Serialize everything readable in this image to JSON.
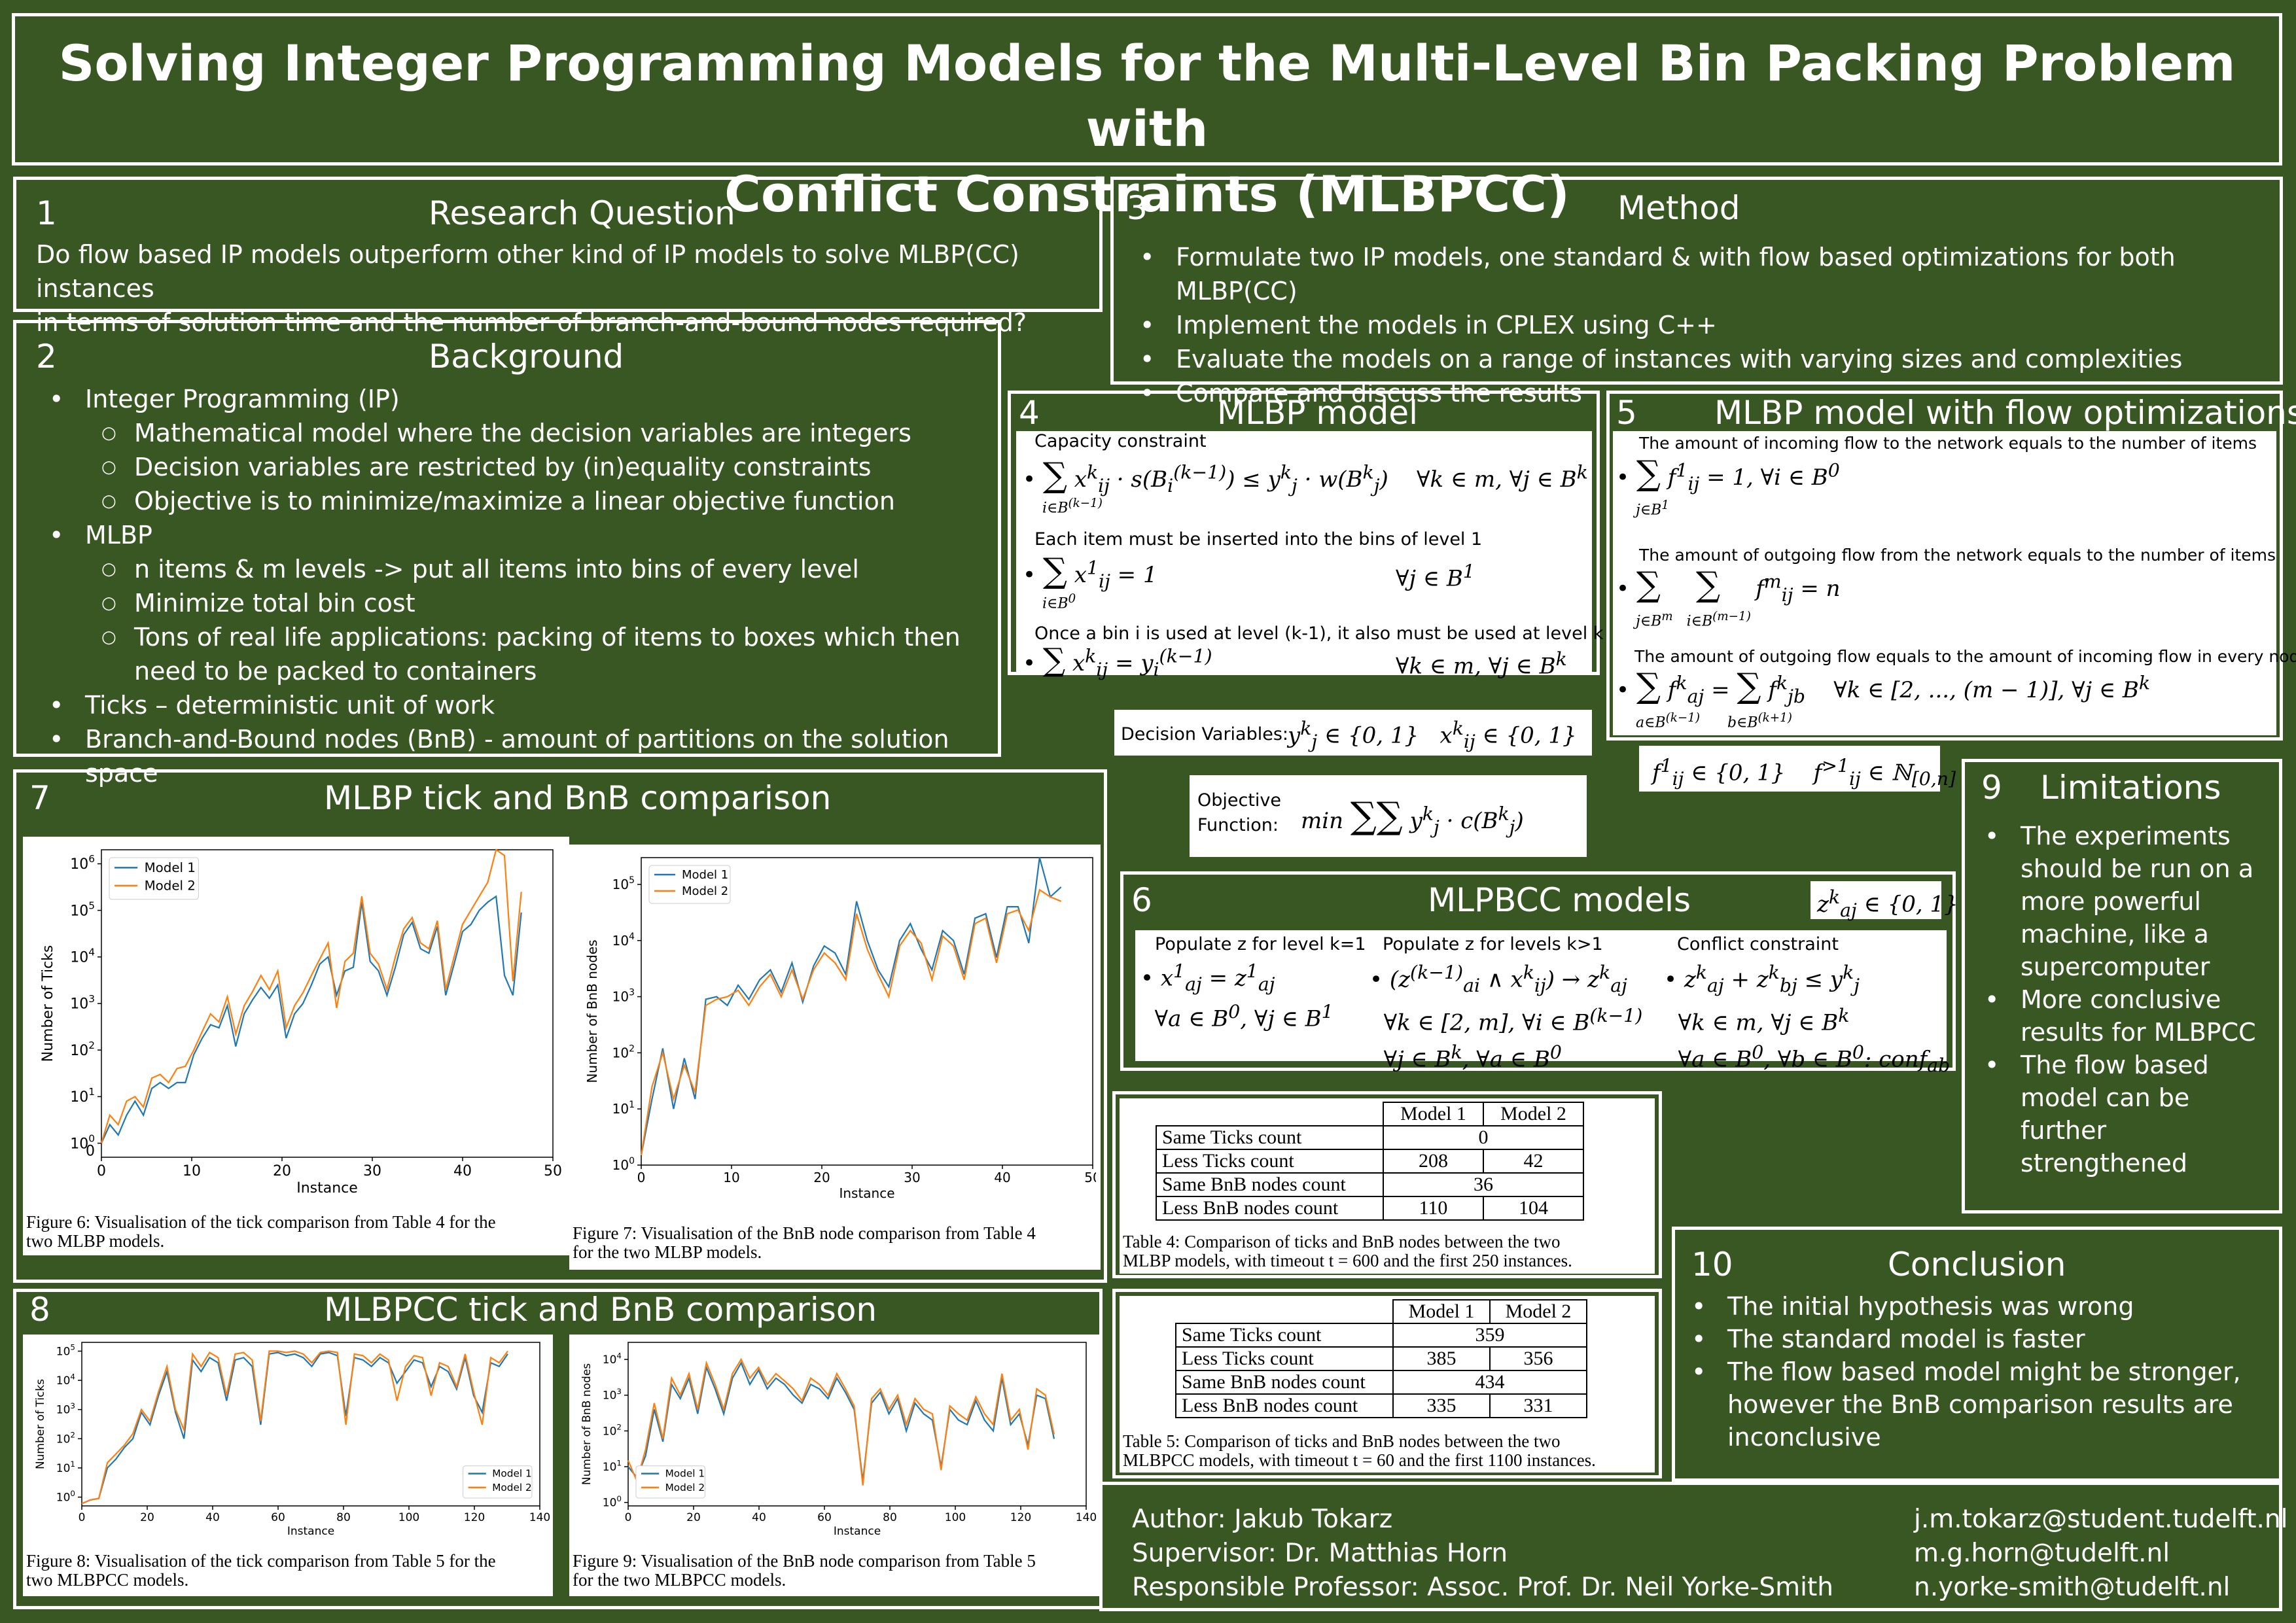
{
  "title": {
    "line1": "Solving Integer Programming Models for the Multi-Level Bin Packing Problem with",
    "line2": "Conflict Constraints (MLBPCC)"
  },
  "research_question": {
    "number": "1",
    "heading": "Research Question",
    "line1": "Do flow based IP models outperform other kind of IP models to solve MLBP(CC) instances",
    "line2": "in terms of solution time and the number of branch-and-bound nodes required?"
  },
  "background": {
    "number": "2",
    "heading": "Background",
    "ip": "Integer Programming (IP)",
    "ip_sub": [
      "Mathematical model where the decision variables are integers",
      "Decision variables are restricted by (in)equality constraints",
      "Objective is to minimize/maximize a linear objective function"
    ],
    "mlbp": "MLBP",
    "mlbp_sub": [
      "n items & m levels -> put all items into bins of every level",
      "Minimize total bin cost",
      "Tons of real life applications: packing of items to boxes which then",
      "need to be packed to containers"
    ],
    "ticks": "Ticks – deterministic unit of work",
    "bnb": "Branch-and-Bound nodes (BnB) - amount of partitions on the solution space"
  },
  "method": {
    "number": "3",
    "heading": "Method",
    "items": [
      "Formulate two IP models, one standard & with flow based optimizations for both MLBP(CC)",
      "Implement the models in CPLEX using C++",
      "Evaluate the models on a range of instances with varying sizes and complexities",
      "Compare and discuss the results"
    ]
  },
  "mlbp_model": {
    "number": "4",
    "heading": "MLBP model",
    "capacity": "Capacity constraint",
    "each_item": "Each item must be inserted into the bins of level 1",
    "once_bin": "Once a bin i is used at level (k-1), it also must be used at level k",
    "decision_label": "Decision Variables:"
  },
  "flow_model": {
    "number": "5",
    "heading": "MLBP model with flow optimizations",
    "incoming": "The amount of incoming flow to the network equals to the number of items",
    "outgoing": "The amount of outgoing flow from the network equals to the number of items",
    "balance": "The amount of outgoing flow equals to the amount of incoming flow in every node"
  },
  "objective": {
    "label1": "Objective",
    "label2": "Function:"
  },
  "mlpbcc": {
    "number": "6",
    "heading": "MLPBCC models",
    "col1": "Populate z for level k=1",
    "col2": "Populate z for levels k>1",
    "col3": "Conflict constraint"
  },
  "mlbp_compare": {
    "number": "7",
    "heading": "MLBP tick and BnB comparison",
    "fig6_caption_1": "Figure 6:  Visualisation of the tick comparison from Table 4 for the",
    "fig6_caption_2": "two MLBP models.",
    "fig7_caption_1": "Figure 7:  Visualisation of the BnB node comparison from Table 4",
    "fig7_caption_2": "for the two MLBP models."
  },
  "mlbpcc_compare": {
    "number": "8",
    "heading": "MLBPCC tick and BnB comparison",
    "fig8_caption_1": "Figure 8:  Visualisation of the tick comparison from Table 5 for the",
    "fig8_caption_2": "two MLBPCC models.",
    "fig9_caption_1": "Figure 9:  Visualisation of the BnB node comparison from Table 5",
    "fig9_caption_2": "for the two MLBPCC models."
  },
  "table4": {
    "headers": [
      "Model 1",
      "Model 2"
    ],
    "rows": [
      {
        "label": "Same Ticks count",
        "span": "0"
      },
      {
        "label": "Less Ticks count",
        "m1": "208",
        "m2": "42"
      },
      {
        "label": "Same BnB nodes count",
        "span": "36"
      },
      {
        "label": "Less BnB nodes count",
        "m1": "110",
        "m2": "104"
      }
    ],
    "caption_1": "Table 4: Comparison of ticks and BnB nodes between the two",
    "caption_2": "MLBP models, with timeout t = 600 and the first 250 instances."
  },
  "table5": {
    "headers": [
      "Model 1",
      "Model 2"
    ],
    "rows": [
      {
        "label": "Same Ticks count",
        "span": "359"
      },
      {
        "label": "Less Ticks count",
        "m1": "385",
        "m2": "356"
      },
      {
        "label": "Same BnB nodes count",
        "span": "434"
      },
      {
        "label": "Less BnB nodes count",
        "m1": "335",
        "m2": "331"
      }
    ],
    "caption_1": "Table 5: Comparison of ticks and BnB nodes between the two",
    "caption_2": "MLBPCC models, with timeout t = 60 and the first 1100 instances."
  },
  "limitations": {
    "number": "9",
    "heading": "Limitations",
    "lines": [
      [
        "The experiments",
        "should be run on a",
        "more powerful",
        "machine, like a",
        "supercomputer"
      ],
      [
        "More conclusive",
        "results for MLBPCC"
      ],
      [
        "The flow based",
        "model can be",
        "further",
        "strengthened"
      ]
    ]
  },
  "conclusion": {
    "number": "10",
    "heading": "Conclusion",
    "items": [
      "The initial hypothesis was wrong",
      "The standard model is faster",
      "The flow based model might be stronger,",
      "however the BnB comparison results are",
      "inconclusive"
    ]
  },
  "authors": {
    "author": "Author: Jakub Tokarz",
    "supervisor": "Supervisor: Dr. Matthias Horn",
    "professor": "Responsible Professor: Assoc. Prof. Dr. Neil Yorke-Smith",
    "email1": "j.m.tokarz@student.tudelft.nl",
    "email2": "m.g.horn@tudelft.nl",
    "email3": "n.yorke-smith@tudelft.nl"
  },
  "colors": {
    "background": "#385723",
    "model1": "#1f77b4",
    "model2": "#ff7f0e"
  },
  "chart_data": [
    {
      "id": "fig6",
      "type": "line",
      "xlabel": "Instance",
      "ylabel": "Number of Ticks",
      "log_y": true,
      "xlim": [
        0,
        50
      ],
      "xticks": [
        0,
        10,
        20,
        30,
        40,
        50
      ],
      "ylim": [
        0.5,
        2000000
      ],
      "yticks": [
        "10^0",
        "10^1",
        "10^2",
        "10^3",
        "10^4",
        "10^5",
        "10^6"
      ],
      "extra_ytick": "0",
      "legend": "top-left",
      "series": [
        {
          "name": "Model 1",
          "values": [
            1,
            2.5,
            1.5,
            4,
            8,
            4,
            15,
            20,
            15,
            20,
            20,
            80,
            180,
            350,
            300,
            900,
            120,
            600,
            1200,
            2200,
            1300,
            2500,
            180,
            600,
            1000,
            2500,
            7000,
            10000,
            1500,
            5000,
            6000,
            150000,
            8000,
            5000,
            1500,
            6000,
            30000,
            55000,
            15000,
            12000,
            45000,
            1500,
            7000,
            35000,
            50000,
            100000,
            150000,
            200000,
            4000,
            1500,
            90000
          ]
        },
        {
          "name": "Model 2",
          "values": [
            1,
            4,
            2.5,
            8,
            10,
            6,
            25,
            30,
            20,
            40,
            45,
            100,
            250,
            600,
            400,
            1400,
            220,
            900,
            1800,
            4000,
            2000,
            5000,
            300,
            900,
            1700,
            4000,
            9000,
            20000,
            800,
            8000,
            12000,
            200000,
            12000,
            7000,
            2000,
            10000,
            40000,
            70000,
            20000,
            15000,
            60000,
            2000,
            10000,
            50000,
            100000,
            200000,
            400000,
            2000000,
            1500000,
            3000,
            250000
          ]
        }
      ]
    },
    {
      "id": "fig7",
      "type": "line",
      "xlabel": "Instance",
      "ylabel": "Number of BnB nodes",
      "log_y": true,
      "xlim": [
        0,
        50
      ],
      "xticks": [
        0,
        10,
        20,
        30,
        40,
        50
      ],
      "ylim": [
        1,
        300000
      ],
      "yticks": [
        "10^0",
        "10^1",
        "10^2",
        "10^3",
        "10^4",
        "10^5"
      ],
      "legend": "top-left",
      "series": [
        {
          "name": "Model 1",
          "values": [
            1.5,
            15,
            120,
            10,
            80,
            15,
            900,
            1000,
            700,
            1600,
            900,
            2000,
            3000,
            1200,
            4000,
            800,
            3500,
            8000,
            6000,
            2500,
            50000,
            10000,
            3000,
            1500,
            10000,
            20000,
            7000,
            3000,
            15000,
            10000,
            2500,
            25000,
            30000,
            5000,
            40000,
            40000,
            9000,
            300000,
            60000,
            90000
          ]
        },
        {
          "name": "Model 2",
          "values": [
            1.5,
            25,
            100,
            15,
            60,
            20,
            700,
            900,
            1000,
            1300,
            700,
            1500,
            2500,
            1000,
            3000,
            900,
            3000,
            6000,
            4000,
            2000,
            30000,
            7000,
            2500,
            1000,
            8000,
            15000,
            9000,
            2000,
            12000,
            8000,
            2000,
            20000,
            25000,
            4000,
            30000,
            35000,
            15000,
            80000,
            60000,
            50000
          ]
        }
      ]
    },
    {
      "id": "fig8",
      "type": "line",
      "xlabel": "Instance",
      "ylabel": "Number of Ticks",
      "log_y": true,
      "xlim": [
        0,
        140
      ],
      "xticks": [
        0,
        20,
        40,
        60,
        80,
        100,
        120,
        140
      ],
      "ylim": [
        0.5,
        200000
      ],
      "yticks": [
        "10^0",
        "10^1",
        "10^2",
        "10^3",
        "10^4",
        "10^5"
      ],
      "legend": "bottom-right",
      "series": [
        {
          "name": "Model 1",
          "values": [
            0.6,
            0.8,
            0.9,
            10,
            20,
            50,
            100,
            800,
            300,
            3000,
            20000,
            800,
            100,
            50000,
            20000,
            60000,
            40000,
            2000,
            50000,
            60000,
            30000,
            300,
            80000,
            90000,
            70000,
            80000,
            60000,
            30000,
            80000,
            90000,
            70000,
            600,
            60000,
            50000,
            30000,
            60000,
            40000,
            8000,
            20000,
            50000,
            40000,
            6000,
            30000,
            20000,
            5000,
            60000,
            3000,
            800,
            40000,
            30000,
            80000
          ]
        },
        {
          "name": "Model 2",
          "values": [
            0.6,
            0.8,
            0.9,
            15,
            30,
            60,
            150,
            1000,
            400,
            4000,
            30000,
            1000,
            200,
            80000,
            30000,
            90000,
            60000,
            3000,
            80000,
            90000,
            50000,
            400,
            100000,
            100000,
            90000,
            100000,
            80000,
            40000,
            90000,
            100000,
            90000,
            300,
            80000,
            70000,
            40000,
            80000,
            50000,
            2000,
            30000,
            70000,
            60000,
            3000,
            40000,
            30000,
            6000,
            80000,
            4000,
            300,
            60000,
            40000,
            100000
          ]
        }
      ]
    },
    {
      "id": "fig9",
      "type": "line",
      "xlabel": "Instance",
      "ylabel": "Number of BnB nodes",
      "log_y": true,
      "xlim": [
        0,
        140
      ],
      "xticks": [
        0,
        20,
        40,
        60,
        80,
        100,
        120,
        140
      ],
      "ylim": [
        0.8,
        30000
      ],
      "yticks": [
        "10^0",
        "10^1",
        "10^2",
        "10^3",
        "10^4"
      ],
      "legend": "bottom-left",
      "series": [
        {
          "name": "Model 1",
          "values": [
            10,
            5,
            20,
            400,
            50,
            2000,
            800,
            3000,
            300,
            6000,
            1500,
            300,
            3000,
            8000,
            2000,
            5000,
            1500,
            3000,
            2000,
            1000,
            600,
            2000,
            1500,
            800,
            3000,
            1200,
            400,
            4,
            600,
            1200,
            300,
            800,
            100,
            600,
            300,
            200,
            10,
            400,
            200,
            150,
            700,
            200,
            100,
            3000,
            150,
            300,
            40,
            1000,
            800,
            60
          ]
        },
        {
          "name": "Model 2",
          "values": [
            15,
            4,
            30,
            600,
            60,
            3000,
            1000,
            4000,
            400,
            8000,
            2000,
            400,
            4000,
            10000,
            3000,
            6000,
            2000,
            4000,
            2500,
            1500,
            700,
            3000,
            2000,
            1000,
            4000,
            1500,
            500,
            3,
            800,
            1500,
            400,
            1000,
            150,
            800,
            400,
            300,
            8,
            500,
            300,
            200,
            900,
            300,
            150,
            4000,
            200,
            400,
            30,
            1500,
            1000,
            80
          ]
        }
      ]
    }
  ]
}
